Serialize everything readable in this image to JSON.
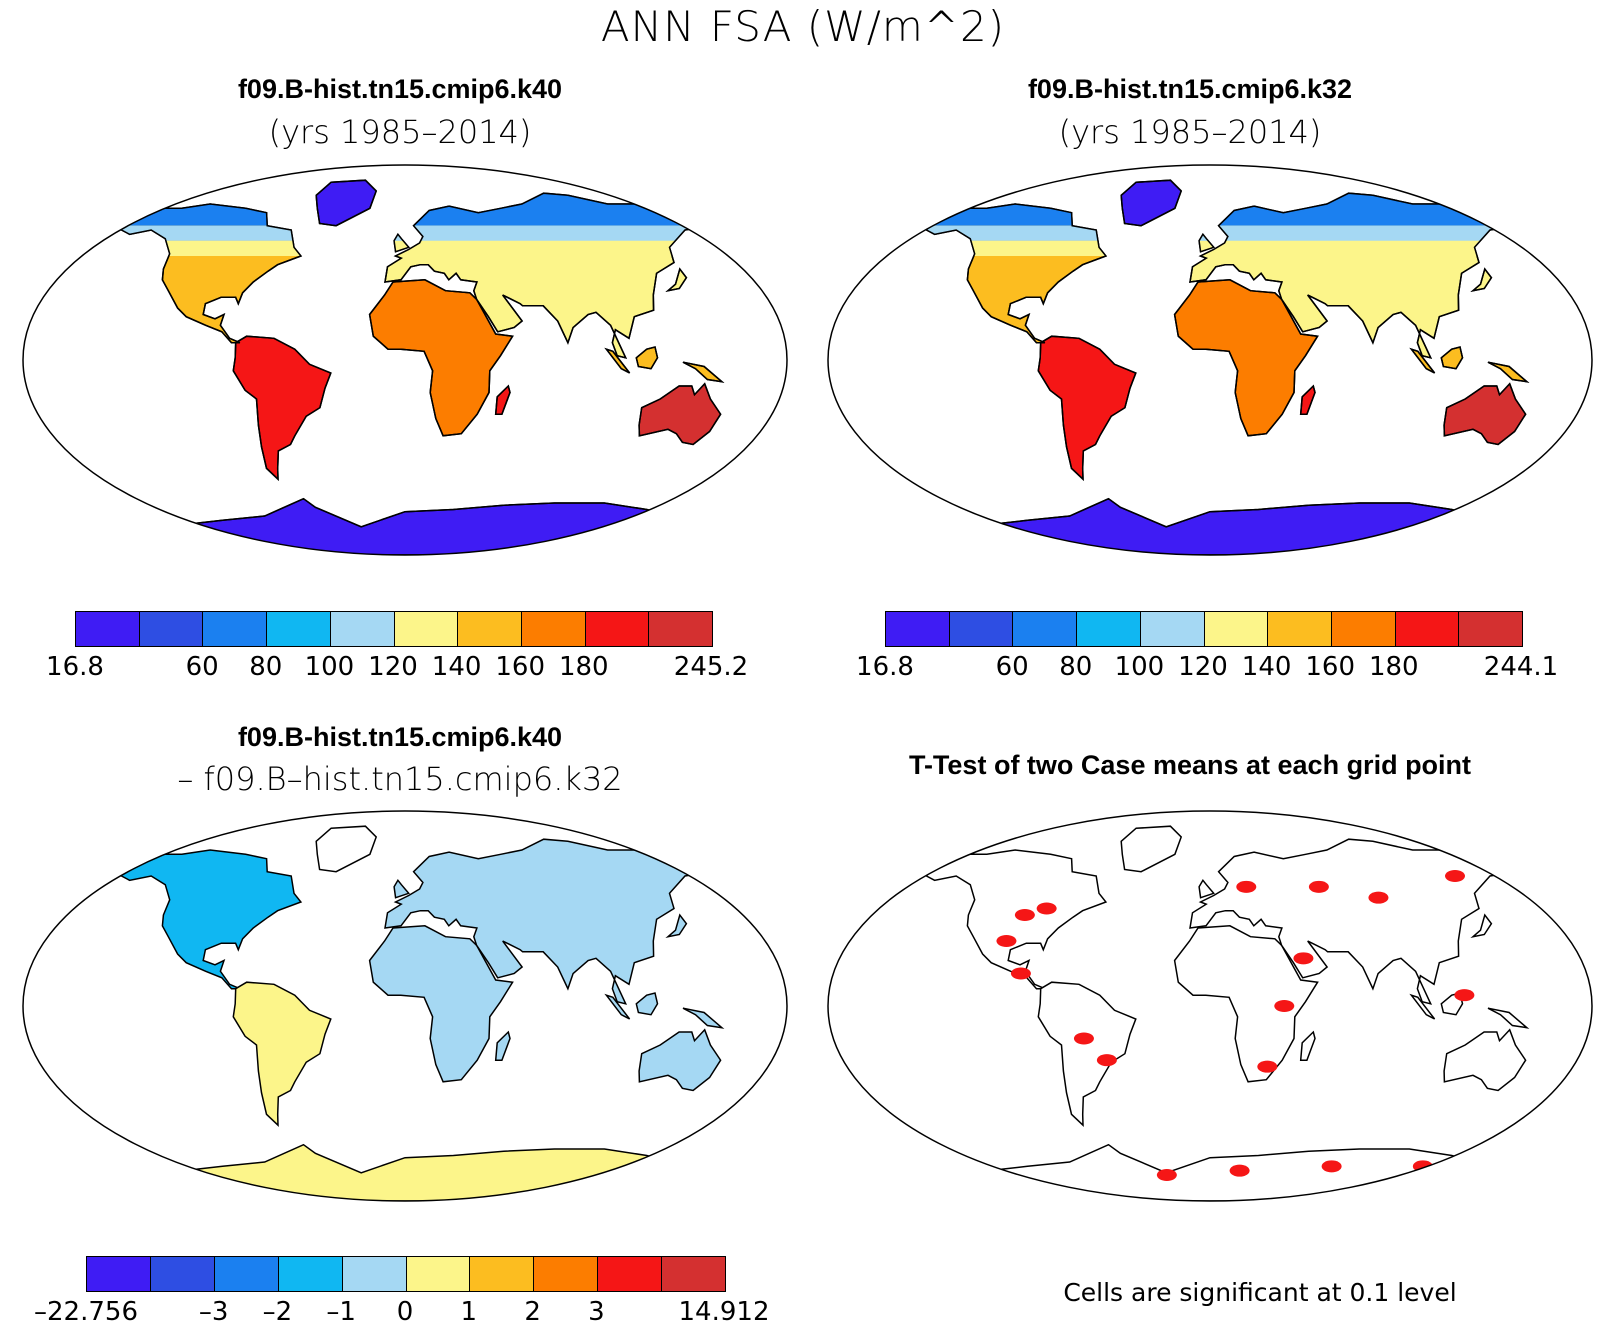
{
  "figure": {
    "title": "ANN FSA (W/m^2)"
  },
  "panels": [
    {
      "id": "k40",
      "title": "f09.B-hist.tn15.cmip6.k40",
      "subtitle": "(yrs 1985–2014)"
    },
    {
      "id": "k32",
      "title": "f09.B-hist.tn15.cmip6.k32",
      "subtitle": "(yrs 1985–2014)"
    },
    {
      "id": "diff",
      "title": "f09.B-hist.tn15.cmip6.k40",
      "subtitle": "– f09.B–hist.tn15.cmip6.k32"
    },
    {
      "id": "ttest",
      "title": "T-Test of two Case means at each grid point",
      "subtitle": ""
    }
  ],
  "colorbars": {
    "k40": {
      "colors": [
        "#3f1cf4",
        "#2e4ee3",
        "#1b80f0",
        "#10b7f2",
        "#a5d8f3",
        "#fcf58a",
        "#fcbd20",
        "#fc7d00",
        "#f51616",
        "#d43030"
      ],
      "labels": [
        "16.8",
        "60",
        "80",
        "100",
        "120",
        "140",
        "160",
        "180",
        "245.2"
      ]
    },
    "k32": {
      "colors": [
        "#3f1cf4",
        "#2e4ee3",
        "#1b80f0",
        "#10b7f2",
        "#a5d8f3",
        "#fcf58a",
        "#fcbd20",
        "#fc7d00",
        "#f51616",
        "#d43030"
      ],
      "labels": [
        "16.8",
        "60",
        "80",
        "100",
        "120",
        "140",
        "160",
        "180",
        "244.1"
      ]
    },
    "diff": {
      "colors": [
        "#3f1cf4",
        "#2e4ee3",
        "#1b80f0",
        "#10b7f2",
        "#a5d8f3",
        "#fcf58a",
        "#fcbd20",
        "#fc7d00",
        "#f51616",
        "#d43030"
      ],
      "labels": [
        "–22.756",
        "–3",
        "–2",
        "–1",
        "0",
        "1",
        "2",
        "3",
        "14.912"
      ]
    }
  },
  "footnote": "Cells are significant at 0.1 level"
}
